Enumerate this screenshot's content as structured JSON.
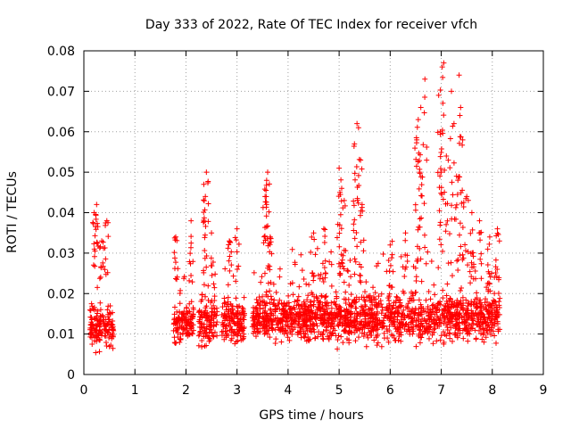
{
  "chart_data": {
    "type": "scatter",
    "title": "Day 333 of 2022, Rate Of TEC Index for receiver vfch",
    "xlabel": "GPS time / hours",
    "ylabel": "ROTI / TECUs",
    "xlim": [
      0,
      9
    ],
    "ylim": [
      0,
      0.08
    ],
    "xticks": [
      "0",
      "1",
      "2",
      "3",
      "4",
      "5",
      "6",
      "7",
      "8",
      "9"
    ],
    "yticks": [
      "0",
      "0.01",
      "0.02",
      "0.03",
      "0.04",
      "0.05",
      "0.06",
      "0.07",
      "0.08"
    ],
    "grid": true,
    "marker": "+",
    "color": "#ff0000",
    "series": [
      {
        "name": "ROTI",
        "segments": [
          {
            "x_start": 0.12,
            "x_end": 0.58,
            "baseline": 0.012,
            "spread": 0.009
          },
          {
            "x_start": 1.75,
            "x_end": 2.15,
            "baseline": 0.013,
            "spread": 0.008
          },
          {
            "x_start": 2.25,
            "x_end": 2.62,
            "baseline": 0.013,
            "spread": 0.01
          },
          {
            "x_start": 2.7,
            "x_end": 3.15,
            "baseline": 0.013,
            "spread": 0.009
          },
          {
            "x_start": 3.3,
            "x_end": 8.15,
            "baseline": 0.014,
            "spread": 0.01
          }
        ],
        "peaks": [
          {
            "x": 0.2,
            "y": 0.04
          },
          {
            "x": 0.25,
            "y": 0.042
          },
          {
            "x": 0.45,
            "y": 0.038
          },
          {
            "x": 0.35,
            "y": 0.033
          },
          {
            "x": 1.8,
            "y": 0.034
          },
          {
            "x": 2.1,
            "y": 0.038
          },
          {
            "x": 2.4,
            "y": 0.05
          },
          {
            "x": 2.35,
            "y": 0.047
          },
          {
            "x": 2.38,
            "y": 0.044
          },
          {
            "x": 2.5,
            "y": 0.035
          },
          {
            "x": 2.85,
            "y": 0.033
          },
          {
            "x": 3.0,
            "y": 0.036
          },
          {
            "x": 3.6,
            "y": 0.05
          },
          {
            "x": 3.58,
            "y": 0.048
          },
          {
            "x": 3.55,
            "y": 0.044
          },
          {
            "x": 3.65,
            "y": 0.034
          },
          {
            "x": 4.5,
            "y": 0.035
          },
          {
            "x": 4.7,
            "y": 0.036
          },
          {
            "x": 5.0,
            "y": 0.051
          },
          {
            "x": 5.05,
            "y": 0.046
          },
          {
            "x": 5.1,
            "y": 0.043
          },
          {
            "x": 5.3,
            "y": 0.057
          },
          {
            "x": 5.35,
            "y": 0.062
          },
          {
            "x": 5.38,
            "y": 0.061
          },
          {
            "x": 5.42,
            "y": 0.053
          },
          {
            "x": 5.45,
            "y": 0.042
          },
          {
            "x": 6.0,
            "y": 0.032
          },
          {
            "x": 6.3,
            "y": 0.035
          },
          {
            "x": 6.55,
            "y": 0.063
          },
          {
            "x": 6.6,
            "y": 0.066
          },
          {
            "x": 6.52,
            "y": 0.058
          },
          {
            "x": 6.58,
            "y": 0.05
          },
          {
            "x": 6.68,
            "y": 0.073
          },
          {
            "x": 6.95,
            "y": 0.069
          },
          {
            "x": 6.98,
            "y": 0.06
          },
          {
            "x": 7.05,
            "y": 0.077
          },
          {
            "x": 7.02,
            "y": 0.076
          },
          {
            "x": 7.1,
            "y": 0.054
          },
          {
            "x": 7.2,
            "y": 0.07
          },
          {
            "x": 7.25,
            "y": 0.062
          },
          {
            "x": 7.35,
            "y": 0.074
          },
          {
            "x": 7.38,
            "y": 0.066
          },
          {
            "x": 7.42,
            "y": 0.058
          },
          {
            "x": 7.3,
            "y": 0.049
          },
          {
            "x": 7.5,
            "y": 0.044
          },
          {
            "x": 7.6,
            "y": 0.04
          },
          {
            "x": 7.75,
            "y": 0.038
          },
          {
            "x": 7.95,
            "y": 0.034
          },
          {
            "x": 8.1,
            "y": 0.036
          }
        ]
      }
    ]
  }
}
